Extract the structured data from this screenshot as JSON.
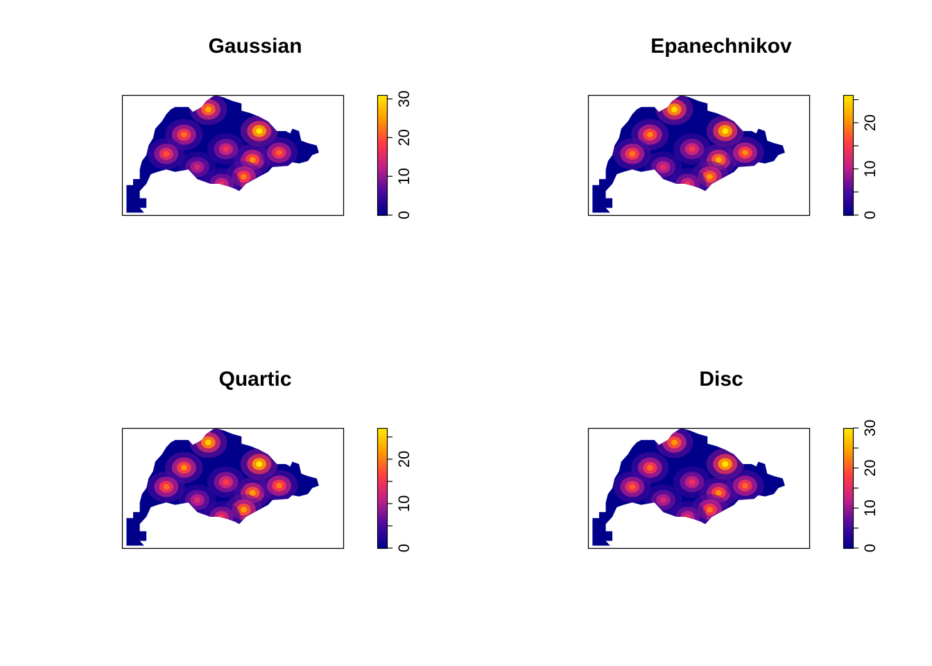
{
  "chart_data": [
    {
      "type": "heatmap",
      "title": "Gaussian",
      "xlabel": "",
      "ylabel": "",
      "colorbar": {
        "min": 0,
        "max": 31,
        "ticks": [
          0,
          10,
          20,
          30
        ],
        "tick_labels": [
          "0",
          "10",
          "20",
          "30"
        ]
      },
      "hotspots": [
        {
          "x": 0.39,
          "y": 0.12,
          "value": 26
        },
        {
          "x": 0.62,
          "y": 0.3,
          "value": 31
        },
        {
          "x": 0.28,
          "y": 0.33,
          "value": 22
        },
        {
          "x": 0.2,
          "y": 0.49,
          "value": 20
        },
        {
          "x": 0.59,
          "y": 0.54,
          "value": 24
        },
        {
          "x": 0.71,
          "y": 0.48,
          "value": 21
        },
        {
          "x": 0.55,
          "y": 0.68,
          "value": 23
        },
        {
          "x": 0.47,
          "y": 0.45,
          "value": 17
        },
        {
          "x": 0.34,
          "y": 0.6,
          "value": 14
        },
        {
          "x": 0.45,
          "y": 0.74,
          "value": 16
        }
      ]
    },
    {
      "type": "heatmap",
      "title": "Epanechnikov",
      "xlabel": "",
      "ylabel": "",
      "colorbar": {
        "min": 0,
        "max": 26,
        "ticks": [
          0,
          5,
          10,
          15,
          20,
          25
        ],
        "tick_labels": [
          "0",
          "10",
          "20"
        ]
      },
      "hotspots": [
        {
          "x": 0.39,
          "y": 0.12,
          "value": 25
        },
        {
          "x": 0.62,
          "y": 0.3,
          "value": 26
        },
        {
          "x": 0.28,
          "y": 0.33,
          "value": 20
        },
        {
          "x": 0.2,
          "y": 0.49,
          "value": 19
        },
        {
          "x": 0.59,
          "y": 0.54,
          "value": 22
        },
        {
          "x": 0.71,
          "y": 0.48,
          "value": 20
        },
        {
          "x": 0.55,
          "y": 0.68,
          "value": 21
        },
        {
          "x": 0.47,
          "y": 0.45,
          "value": 15
        },
        {
          "x": 0.34,
          "y": 0.6,
          "value": 13
        },
        {
          "x": 0.45,
          "y": 0.74,
          "value": 14
        }
      ]
    },
    {
      "type": "heatmap",
      "title": "Quartic",
      "xlabel": "",
      "ylabel": "",
      "colorbar": {
        "min": 0,
        "max": 27,
        "ticks": [
          0,
          5,
          10,
          15,
          20,
          25
        ],
        "tick_labels": [
          "0",
          "10",
          "20"
        ]
      },
      "hotspots": [
        {
          "x": 0.39,
          "y": 0.12,
          "value": 25
        },
        {
          "x": 0.62,
          "y": 0.3,
          "value": 27
        },
        {
          "x": 0.28,
          "y": 0.33,
          "value": 21
        },
        {
          "x": 0.2,
          "y": 0.49,
          "value": 19
        },
        {
          "x": 0.59,
          "y": 0.54,
          "value": 22
        },
        {
          "x": 0.71,
          "y": 0.48,
          "value": 20
        },
        {
          "x": 0.55,
          "y": 0.68,
          "value": 22
        },
        {
          "x": 0.47,
          "y": 0.45,
          "value": 16
        },
        {
          "x": 0.34,
          "y": 0.6,
          "value": 13
        },
        {
          "x": 0.45,
          "y": 0.74,
          "value": 15
        }
      ]
    },
    {
      "type": "heatmap",
      "title": "Disc",
      "xlabel": "",
      "ylabel": "",
      "colorbar": {
        "min": 0,
        "max": 30,
        "ticks": [
          0,
          5,
          10,
          15,
          20,
          25,
          30
        ],
        "tick_labels": [
          "0",
          "10",
          "20",
          "30"
        ]
      },
      "hotspots": [
        {
          "x": 0.39,
          "y": 0.12,
          "value": 24
        },
        {
          "x": 0.62,
          "y": 0.3,
          "value": 30
        },
        {
          "x": 0.28,
          "y": 0.33,
          "value": 21
        },
        {
          "x": 0.2,
          "y": 0.49,
          "value": 20
        },
        {
          "x": 0.59,
          "y": 0.54,
          "value": 23
        },
        {
          "x": 0.71,
          "y": 0.48,
          "value": 21
        },
        {
          "x": 0.55,
          "y": 0.68,
          "value": 22
        },
        {
          "x": 0.47,
          "y": 0.45,
          "value": 16
        },
        {
          "x": 0.34,
          "y": 0.6,
          "value": 14
        },
        {
          "x": 0.45,
          "y": 0.74,
          "value": 15
        }
      ]
    }
  ],
  "colors": {
    "low": "#00008B",
    "mid_low": "#4B0AA0",
    "mid": "#C0208A",
    "mid_high": "#FF3A45",
    "high": "#FF9A00",
    "top": "#FFE800",
    "frame": "#000000",
    "background": "#FFFFFF"
  }
}
